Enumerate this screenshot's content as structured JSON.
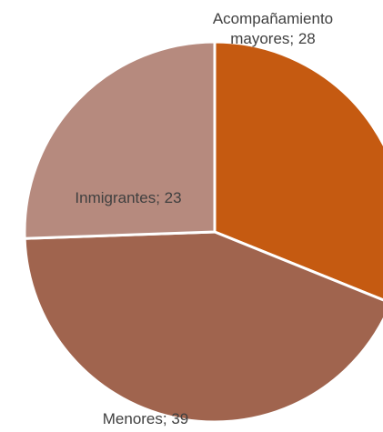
{
  "chart_data": {
    "type": "pie",
    "start_angle_deg": 0,
    "direction": "clockwise",
    "slices": [
      {
        "label_lines": [
          "Acompañamiento",
          "mayores; 28"
        ],
        "category": "Acompañamiento mayores",
        "value": 28,
        "color": "#C55A11"
      },
      {
        "label_lines": [
          "Menores; 39"
        ],
        "category": "Menores",
        "value": 39,
        "color": "#A0644E"
      },
      {
        "label_lines": [
          "Inmigrantes; 23"
        ],
        "category": "Inmigrantes",
        "value": 23,
        "color": "#B68A7E"
      }
    ],
    "slice_border_color": "#ffffff",
    "legend": "none",
    "data_labels": true
  }
}
